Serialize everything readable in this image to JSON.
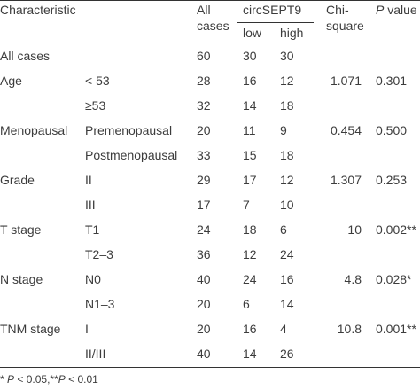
{
  "headers": {
    "characteristic": "Characteristic",
    "all_cases_1": "All",
    "all_cases_2": "cases",
    "circ": "circSEPT9",
    "low": "low",
    "high": "high",
    "chi_1": "Chi-",
    "chi_2": "square",
    "p_italic": "P",
    "p_rest": " value"
  },
  "rows": [
    {
      "group": "All cases",
      "sub": "",
      "all": "60",
      "low": "30",
      "high": "30",
      "chi": "",
      "p": ""
    },
    {
      "group": "Age",
      "sub": "< 53",
      "all": "28",
      "low": "16",
      "high": "12",
      "chi": "1.071",
      "p": "0.301"
    },
    {
      "group": "",
      "sub": "≥53",
      "all": "32",
      "low": "14",
      "high": "18",
      "chi": "",
      "p": ""
    },
    {
      "group": "Menopausal",
      "sub": "Premenopausal",
      "all": "20",
      "low": "11",
      "high": "9",
      "chi": "0.454",
      "p": "0.500"
    },
    {
      "group": "",
      "sub": "Postmenopausal",
      "all": "33",
      "low": "15",
      "high": "18",
      "chi": "",
      "p": ""
    },
    {
      "group": "Grade",
      "sub": "II",
      "all": "29",
      "low": "17",
      "high": "12",
      "chi": "1.307",
      "p": "0.253"
    },
    {
      "group": "",
      "sub": "III",
      "all": "17",
      "low": "7",
      "high": "10",
      "chi": "",
      "p": ""
    },
    {
      "group": "T stage",
      "sub": "T1",
      "all": "24",
      "low": "18",
      "high": "6",
      "chi": "10",
      "p": "0.002**"
    },
    {
      "group": "",
      "sub": "T2–3",
      "all": "36",
      "low": "12",
      "high": "24",
      "chi": "",
      "p": ""
    },
    {
      "group": "N stage",
      "sub": "N0",
      "all": "40",
      "low": "24",
      "high": "16",
      "chi": "4.8",
      "p": "0.028*"
    },
    {
      "group": "",
      "sub": "N1–3",
      "all": "20",
      "low": "6",
      "high": "14",
      "chi": "",
      "p": ""
    },
    {
      "group": "TNM stage",
      "sub": "I",
      "all": "20",
      "low": "16",
      "high": "4",
      "chi": "10.8",
      "p": "0.001**"
    },
    {
      "group": "",
      "sub": "II/III",
      "all": "40",
      "low": "14",
      "high": "26",
      "chi": "",
      "p": ""
    }
  ],
  "footnote": {
    "part1": "* ",
    "p1": "P",
    "part2": " < 0.05,**",
    "p2": "P",
    "part3": " < 0.01"
  }
}
